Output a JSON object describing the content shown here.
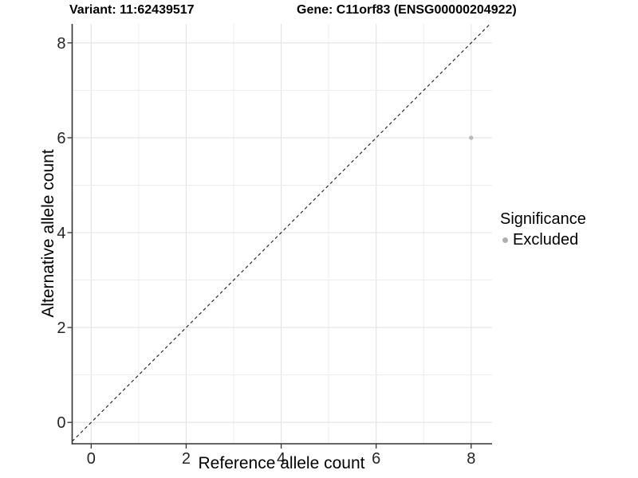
{
  "chart_data": {
    "type": "scatter",
    "title_left": "Variant: 11:62439517",
    "title_right": "Gene: C11orf83 (ENSG00000204922)",
    "xlabel": "Reference allele count",
    "ylabel": "Alternative allele count",
    "xlim": [
      -0.4,
      8.44
    ],
    "ylim": [
      -0.45,
      8.4
    ],
    "xticks": [
      0,
      2,
      4,
      6,
      8
    ],
    "yticks": [
      0,
      2,
      4,
      6,
      8
    ],
    "grid": {
      "show": true,
      "minor_between_majors": true
    },
    "reference_line": {
      "type": "identity",
      "slope": 1,
      "intercept": 0,
      "style": "dashed",
      "color": "#1a1a1a"
    },
    "series": [
      {
        "name": "Excluded",
        "color": "#b9b9b9",
        "points": [
          {
            "x": 8,
            "y": 6
          }
        ]
      }
    ],
    "legend": {
      "title": "Significance",
      "position": "right",
      "entries": [
        {
          "label": "Excluded",
          "color": "#b0b0b0",
          "marker": "circle"
        }
      ]
    }
  },
  "colors": {
    "background": "#ffffff",
    "axis_line": "#333333",
    "tick_label": "#262626",
    "grid_major": "#e3e3e3",
    "grid_minor": "#ececec"
  }
}
